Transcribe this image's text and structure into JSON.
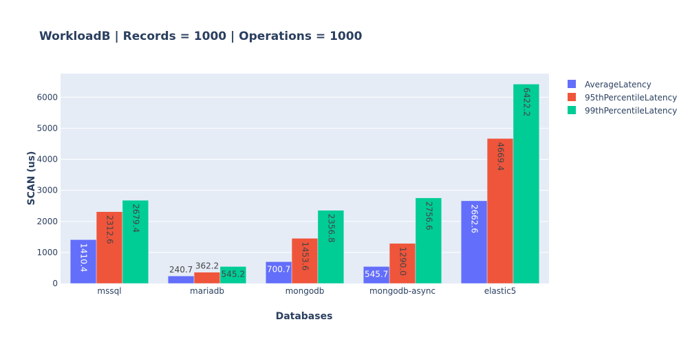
{
  "chart_data": {
    "type": "bar",
    "title": "WorkloadB | Records = 1000 | Operations = 1000",
    "xlabel": "Databases",
    "ylabel": "SCAN (us)",
    "categories": [
      "mssql",
      "mariadb",
      "mongodb",
      "mongodb-async",
      "elastic5"
    ],
    "ylim": [
      0,
      6760
    ],
    "yticks": [
      0,
      1000,
      2000,
      3000,
      4000,
      5000,
      6000
    ],
    "grid": true,
    "legend_position": "right",
    "series": [
      {
        "name": "AverageLatency",
        "color": "#636efa",
        "values": [
          1410.4,
          240.7,
          700.7,
          545.7,
          2662.6
        ],
        "labels": [
          "1410.4",
          "240.7",
          "700.7",
          "545.7",
          "2662.6"
        ]
      },
      {
        "name": "95thPercentileLatency",
        "color": "#ef553b",
        "values": [
          2312.6,
          362.2,
          1453.6,
          1290.0,
          4669.4
        ],
        "labels": [
          "2312.6",
          "362.2",
          "1453.6",
          "1290.0",
          "4669.4"
        ]
      },
      {
        "name": "99thPercentileLatency",
        "color": "#00cc96",
        "values": [
          2679.4,
          545.2,
          2356.8,
          2756.6,
          6422.2
        ],
        "labels": [
          "2679.4",
          "545.2",
          "2356.8",
          "2756.6",
          "6422.2"
        ]
      }
    ]
  }
}
